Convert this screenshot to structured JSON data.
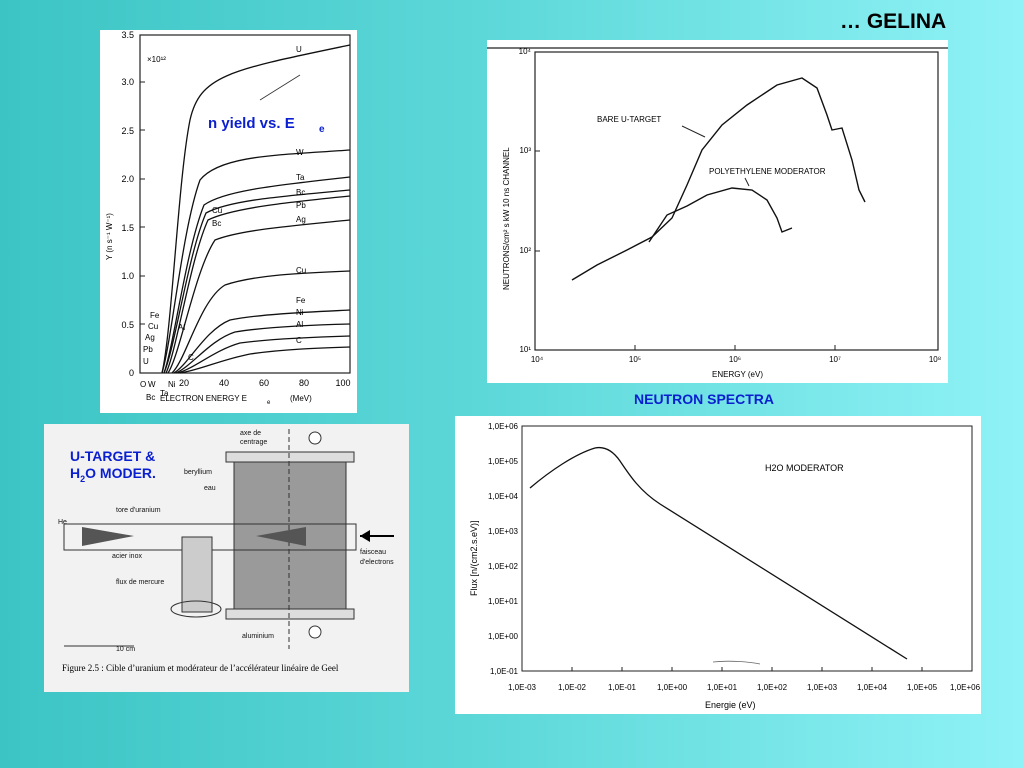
{
  "slide": {
    "title": "… GELINA",
    "neutron_spectra_caption": "NEUTRON SPECTRA"
  },
  "yield_plot": {
    "annotation": "n yield vs. E",
    "annotation_sub": "e",
    "ylabel": "Y (n s⁻¹ W⁻¹)",
    "multiplier": "×10¹²",
    "xlabel": "ELECTRON ENERGY E",
    "xlabel_sub": "e",
    "xlabel_unit": "(MeV)",
    "yticks": [
      "0",
      "0.5",
      "1.0",
      "1.5",
      "2.0",
      "2.5",
      "3.0",
      "3.5"
    ],
    "xticks": [
      "20",
      "40",
      "60",
      "80",
      "100"
    ],
    "curve_labels": [
      "U",
      "W",
      "Ta",
      "Bc",
      "Pb",
      "Ag",
      "Cu",
      "Fe",
      "Ni",
      "Al",
      "C"
    ],
    "left_labels": [
      "Fe",
      "Cu",
      "Ag",
      "Pb",
      "U"
    ],
    "mid_labels": [
      "Cu",
      "Bc"
    ],
    "low_labels": [
      "Al",
      "C"
    ],
    "bottom_labels": [
      "O",
      "W",
      "Ni",
      "Bc",
      "Ta"
    ]
  },
  "spectra_plot": {
    "ylabel": "NEUTRONS/cm² s kW 10 ns CHANNEL",
    "xlabel": "ENERGY (eV)",
    "yticks": [
      "10¹",
      "10²",
      "10³",
      "10⁴"
    ],
    "xticks": [
      "10⁴",
      "10⁵",
      "10⁶",
      "10⁷",
      "10⁸"
    ],
    "label_bare": "BARE U-TARGET",
    "label_poly": "POLYETHYLENE MODERATOR"
  },
  "diagram": {
    "overlay_title_1": "U-TARGET &",
    "overlay_title_2a": "H",
    "overlay_title_2sub": "2",
    "overlay_title_2b": "O MODER.",
    "labels": {
      "axe": "axe de",
      "centrage": "centrage",
      "beryllium": "beryllium",
      "eau": "eau",
      "tore": "tore d'uranium",
      "he": "He",
      "acier": "acier inox",
      "faisceau": "faisceau",
      "electrons": "d'electrons",
      "mercure": "flux de mercure",
      "aluminium": "aluminium",
      "scale": "10 cm"
    },
    "caption": "Figure 2.5 : Cible d’uranium et modérateur de l’accélérateur linéaire de Geel"
  },
  "flux_plot": {
    "legend": "H2O MODERATOR",
    "ylabel": "Flux [n/(cm2.s.eV)]",
    "xlabel": "Energie (eV)",
    "yticks": [
      "1,0E-01",
      "1,0E+00",
      "1,0E+01",
      "1,0E+02",
      "1,0E+03",
      "1,0E+04",
      "1,0E+05",
      "1,0E+06"
    ],
    "xticks": [
      "1,0E-03",
      "1,0E-02",
      "1,0E-01",
      "1,0E+00",
      "1,0E+01",
      "1,0E+02",
      "1,0E+03",
      "1,0E+04",
      "1,0E+05",
      "1,0E+06"
    ]
  }
}
